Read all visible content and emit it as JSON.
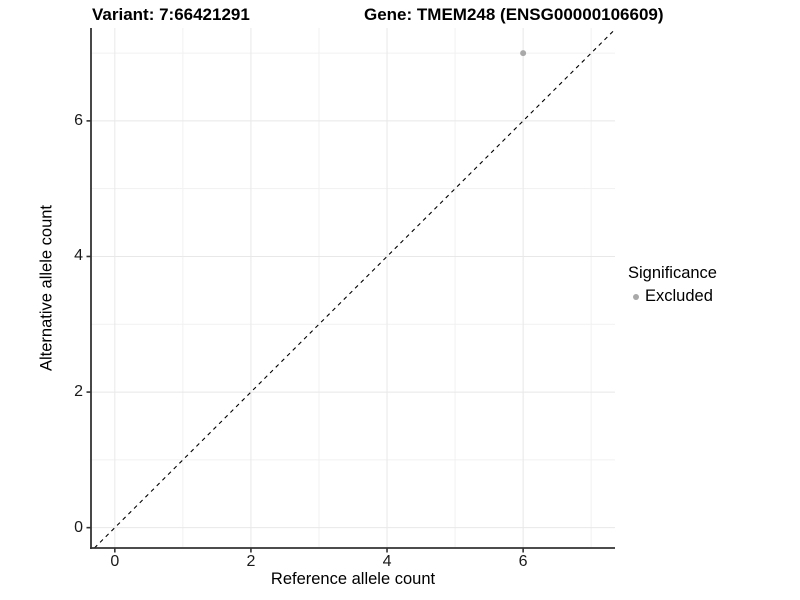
{
  "chart_data": {
    "type": "scatter",
    "title_left": "Variant: 7:66421291",
    "title_right": "Gene: TMEM248 (ENSG00000106609)",
    "xlabel": "Reference allele count",
    "ylabel": "Alternative allele count",
    "xlim": [
      -0.35,
      7.35
    ],
    "ylim": [
      -0.3,
      7.37
    ],
    "xticks": [
      0,
      2,
      4,
      6
    ],
    "yticks": [
      0,
      2,
      4,
      6
    ],
    "minor_xticks": [
      1,
      3,
      5,
      7
    ],
    "minor_yticks": [
      1,
      3,
      5,
      7
    ],
    "grid": "major+minor",
    "points": [
      {
        "x": 6,
        "y": 7,
        "series": "Excluded"
      }
    ],
    "reference_line": {
      "slope": 1,
      "intercept": 0,
      "style": "dashed",
      "color": "#000000"
    },
    "legend": {
      "position": "right",
      "title": "Significance",
      "entries": [
        {
          "label": "Excluded",
          "color": "#a9a9a9"
        }
      ]
    }
  },
  "colors": {
    "background": "#ffffff",
    "grid_major": "#e8e8e8",
    "grid_minor": "#f1f1f1",
    "axis_line": "#333333",
    "tick_mark": "#333333",
    "point": "#a9a9a9",
    "text": "#000000"
  }
}
